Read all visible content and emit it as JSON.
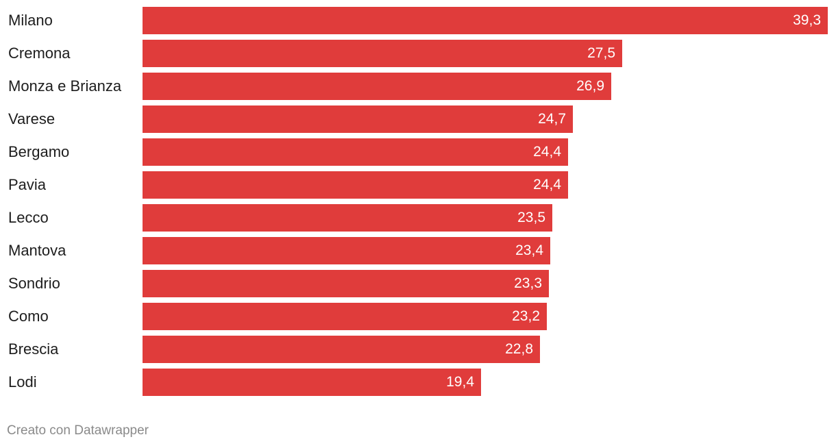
{
  "chart_data": {
    "type": "bar",
    "orientation": "horizontal",
    "categories": [
      "Milano",
      "Cremona",
      "Monza e Brianza",
      "Varese",
      "Bergamo",
      "Pavia",
      "Lecco",
      "Mantova",
      "Sondrio",
      "Como",
      "Brescia",
      "Lodi"
    ],
    "values": [
      39.3,
      27.5,
      26.9,
      24.7,
      24.4,
      24.4,
      23.5,
      23.4,
      23.3,
      23.2,
      22.8,
      19.4
    ],
    "value_labels": [
      "39,3",
      "27,5",
      "26,9",
      "24,7",
      "24,4",
      "24,4",
      "23,5",
      "23,4",
      "23,3",
      "23,2",
      "22,8",
      "19,4"
    ],
    "title": "",
    "xlabel": "",
    "ylabel": "",
    "xlim": [
      0,
      39.3
    ],
    "grid": false,
    "legend": "none",
    "bar_color": "#e03c3b"
  },
  "footer": {
    "credit": "Creato con Datawrapper"
  }
}
